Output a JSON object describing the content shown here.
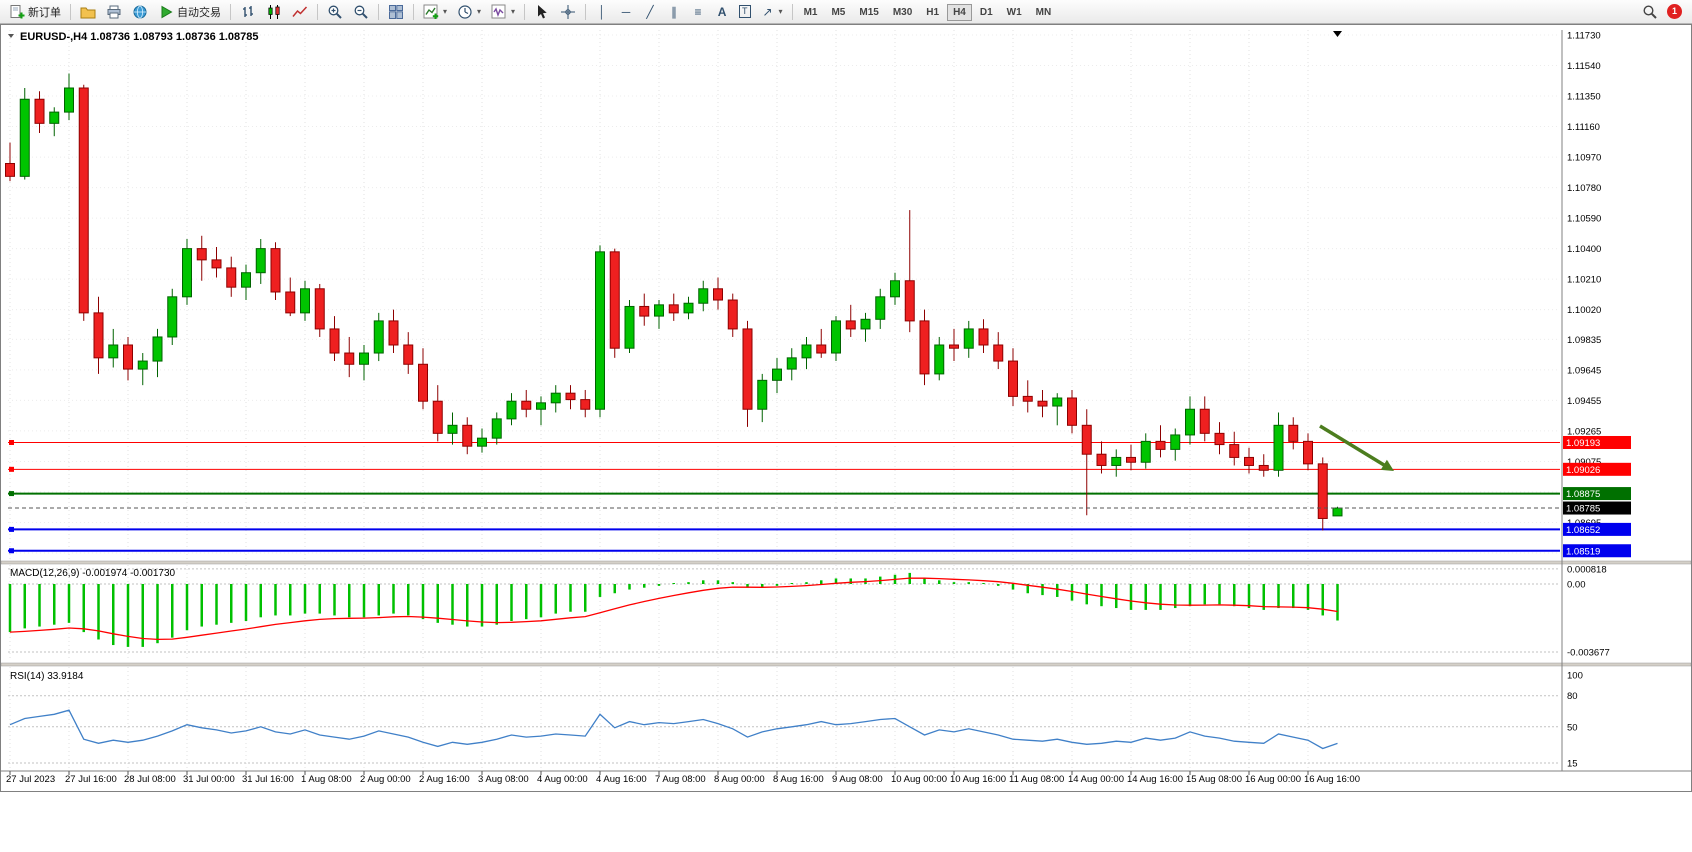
{
  "toolbar": {
    "new_order_label": "新订单",
    "auto_trading_label": "自动交易",
    "timeframes": [
      "M1",
      "M5",
      "M15",
      "M30",
      "H1",
      "H4",
      "D1",
      "W1",
      "MN"
    ],
    "active_timeframe": "H4",
    "notification_count": "1"
  },
  "chart": {
    "symbol_period": "EURUSD-,H4",
    "ohlc": "1.08736 1.08793 1.08736 1.08785",
    "price_axis": [
      "1.11730",
      "1.11540",
      "1.11350",
      "1.11160",
      "1.10970",
      "1.10780",
      "1.10590",
      "1.10400",
      "1.10210",
      "1.10020",
      "1.09835",
      "1.09645",
      "1.09455",
      "1.09265",
      "1.09075",
      "1.08885",
      "1.08695",
      "1.08505"
    ],
    "time_axis": [
      "27 Jul 2023",
      "27 Jul 16:00",
      "28 Jul 08:00",
      "31 Jul 00:00",
      "31 Jul 16:00",
      "1 Aug 08:00",
      "2 Aug 00:00",
      "2 Aug 16:00",
      "3 Aug 08:00",
      "4 Aug 00:00",
      "4 Aug 16:00",
      "7 Aug 08:00",
      "8 Aug 00:00",
      "8 Aug 16:00",
      "9 Aug 08:00",
      "10 Aug 00:00",
      "10 Aug 16:00",
      "11 Aug 08:00",
      "14 Aug 00:00",
      "14 Aug 16:00",
      "15 Aug 08:00",
      "16 Aug 00:00",
      "16 Aug 16:00"
    ],
    "hlines": [
      {
        "price": 1.09193,
        "label": "1.09193",
        "color": "#ff0000",
        "width": 1
      },
      {
        "price": 1.09026,
        "label": "1.09026",
        "color": "#ff0000",
        "width": 1
      },
      {
        "price": 1.08875,
        "label": "1.08875",
        "color": "#007000",
        "width": 2
      },
      {
        "price": 1.08652,
        "label": "1.08652",
        "color": "#0000ee",
        "width": 2
      },
      {
        "price": 1.08519,
        "label": "1.08519",
        "color": "#0000ee",
        "width": 2
      }
    ],
    "current_price": {
      "value": 1.08785,
      "label": "1.08785",
      "tag_color": "#000000"
    },
    "colors": {
      "up": "#00c400",
      "up_border": "#006300",
      "down": "#ee2020",
      "down_border": "#8e0000",
      "macd_bar": "#00c000",
      "macd_signal": "#ff0000",
      "rsi_line": "#4080c8",
      "arrow": "#4c7d1e"
    }
  },
  "chart_data": {
    "type": "candlestick",
    "symbol": "EURUSD-",
    "timeframe": "H4",
    "candles": [
      [
        1.1093,
        1.1106,
        1.1082,
        1.1085
      ],
      [
        1.1085,
        1.114,
        1.1083,
        1.1133
      ],
      [
        1.1133,
        1.1138,
        1.1112,
        1.1118
      ],
      [
        1.1118,
        1.1128,
        1.111,
        1.1125
      ],
      [
        1.1125,
        1.1149,
        1.112,
        1.114
      ],
      [
        1.114,
        1.1142,
        1.0995,
        1.1
      ],
      [
        1.1,
        1.101,
        1.0962,
        1.0972
      ],
      [
        1.0972,
        1.099,
        1.0966,
        1.098
      ],
      [
        1.098,
        1.0985,
        1.0958,
        1.0965
      ],
      [
        1.0965,
        1.0975,
        1.0955,
        1.097
      ],
      [
        1.097,
        1.099,
        1.096,
        1.0985
      ],
      [
        1.0985,
        1.1015,
        1.098,
        1.101
      ],
      [
        1.101,
        1.1046,
        1.1005,
        1.104
      ],
      [
        1.104,
        1.1048,
        1.102,
        1.1033
      ],
      [
        1.1033,
        1.1041,
        1.1022,
        1.1028
      ],
      [
        1.1028,
        1.1035,
        1.101,
        1.1016
      ],
      [
        1.1016,
        1.103,
        1.1008,
        1.1025
      ],
      [
        1.1025,
        1.1046,
        1.1018,
        1.104
      ],
      [
        1.104,
        1.1044,
        1.1008,
        1.1013
      ],
      [
        1.1013,
        1.1022,
        1.0998,
        1.1
      ],
      [
        1.1,
        1.102,
        1.0995,
        1.1015
      ],
      [
        1.1015,
        1.1018,
        1.0985,
        1.099
      ],
      [
        1.099,
        1.0998,
        1.097,
        1.0975
      ],
      [
        1.0975,
        1.0985,
        1.096,
        1.0968
      ],
      [
        1.0968,
        1.098,
        1.0958,
        1.0975
      ],
      [
        1.0975,
        1.1,
        1.097,
        1.0995
      ],
      [
        1.0995,
        1.1002,
        1.0975,
        1.098
      ],
      [
        1.098,
        1.0988,
        1.0962,
        1.0968
      ],
      [
        1.0968,
        1.0978,
        1.094,
        1.0945
      ],
      [
        1.0945,
        1.0955,
        1.092,
        1.0925
      ],
      [
        1.0925,
        1.0938,
        1.0918,
        1.093
      ],
      [
        1.093,
        1.0935,
        1.0912,
        1.0917
      ],
      [
        1.0917,
        1.0928,
        1.0913,
        1.0922
      ],
      [
        1.0922,
        1.0938,
        1.0918,
        1.0934
      ],
      [
        1.0934,
        1.095,
        1.093,
        1.0945
      ],
      [
        1.0945,
        1.0952,
        1.0935,
        1.094
      ],
      [
        1.094,
        1.0948,
        1.093,
        1.0944
      ],
      [
        1.0944,
        1.0955,
        1.0938,
        1.095
      ],
      [
        1.095,
        1.0955,
        1.094,
        1.0946
      ],
      [
        1.0946,
        1.0952,
        1.0935,
        1.094
      ],
      [
        1.094,
        1.1042,
        1.0935,
        1.1038
      ],
      [
        1.1038,
        1.104,
        1.0972,
        1.0978
      ],
      [
        1.0978,
        1.1008,
        1.0975,
        1.1004
      ],
      [
        1.1004,
        1.1012,
        1.0992,
        1.0998
      ],
      [
        1.0998,
        1.1008,
        1.099,
        1.1005
      ],
      [
        1.1005,
        1.1012,
        1.0995,
        1.1
      ],
      [
        1.1,
        1.101,
        1.0996,
        1.1006
      ],
      [
        1.1006,
        1.102,
        1.1001,
        1.1015
      ],
      [
        1.1015,
        1.1022,
        1.1002,
        1.1008
      ],
      [
        1.1008,
        1.1012,
        1.0985,
        1.099
      ],
      [
        1.099,
        1.0995,
        1.0929,
        1.094
      ],
      [
        1.094,
        1.0962,
        1.0932,
        1.0958
      ],
      [
        1.0958,
        1.0972,
        1.095,
        1.0965
      ],
      [
        1.0965,
        1.0978,
        1.0958,
        1.0972
      ],
      [
        1.0972,
        1.0985,
        1.0965,
        1.098
      ],
      [
        1.098,
        1.099,
        1.0972,
        1.0975
      ],
      [
        1.0975,
        1.0998,
        1.097,
        1.0995
      ],
      [
        1.0995,
        1.1005,
        1.0985,
        1.099
      ],
      [
        1.099,
        1.1,
        1.0982,
        1.0996
      ],
      [
        1.0996,
        1.1015,
        1.099,
        1.101
      ],
      [
        1.101,
        1.1025,
        1.1005,
        1.102
      ],
      [
        1.102,
        1.1064,
        1.0988,
        1.0995
      ],
      [
        1.0995,
        1.1002,
        1.0955,
        1.0962
      ],
      [
        1.0962,
        1.0985,
        1.0958,
        1.098
      ],
      [
        1.098,
        1.099,
        1.097,
        1.0978
      ],
      [
        1.0978,
        1.0995,
        1.0972,
        1.099
      ],
      [
        1.099,
        1.0996,
        1.0975,
        1.098
      ],
      [
        1.098,
        1.0988,
        1.0965,
        1.097
      ],
      [
        1.097,
        1.0978,
        1.0942,
        1.0948
      ],
      [
        1.0948,
        1.0958,
        1.0938,
        1.0945
      ],
      [
        1.0945,
        1.0952,
        1.0935,
        1.0942
      ],
      [
        1.0942,
        1.095,
        1.093,
        1.0947
      ],
      [
        1.0947,
        1.0952,
        1.0925,
        1.093
      ],
      [
        1.093,
        1.094,
        1.0874,
        1.0912
      ],
      [
        1.0912,
        1.092,
        1.09,
        1.0905
      ],
      [
        1.0905,
        1.0915,
        1.0898,
        1.091
      ],
      [
        1.091,
        1.0918,
        1.0902,
        1.0907
      ],
      [
        1.0907,
        1.0925,
        1.0903,
        1.092
      ],
      [
        1.092,
        1.093,
        1.091,
        1.0915
      ],
      [
        1.0915,
        1.0928,
        1.0908,
        1.0924
      ],
      [
        1.0924,
        1.0948,
        1.0918,
        1.094
      ],
      [
        1.094,
        1.0948,
        1.092,
        1.0925
      ],
      [
        1.0925,
        1.0932,
        1.0912,
        1.0918
      ],
      [
        1.0918,
        1.0926,
        1.0905,
        1.091
      ],
      [
        1.091,
        1.0916,
        1.09,
        1.0905
      ],
      [
        1.0905,
        1.0912,
        1.0898,
        1.0902
      ],
      [
        1.0902,
        1.0938,
        1.0898,
        1.093
      ],
      [
        1.093,
        1.0935,
        1.0915,
        1.092
      ],
      [
        1.092,
        1.0925,
        1.0902,
        1.0906
      ],
      [
        1.0906,
        1.091,
        1.08645,
        1.0872
      ],
      [
        1.08736,
        1.08793,
        1.08736,
        1.08785
      ]
    ],
    "indicators": {
      "macd": {
        "label": "MACD(12,26,9)",
        "value": "-0.001974",
        "signal_value": "-0.001730",
        "scale": [
          "0.000818",
          "0.00",
          "-0.003677"
        ],
        "histogram": [
          -0.0026,
          -0.0024,
          -0.0023,
          -0.0022,
          -0.0021,
          -0.0026,
          -0.003,
          -0.0033,
          -0.0034,
          -0.0034,
          -0.0032,
          -0.0029,
          -0.0025,
          -0.0023,
          -0.0022,
          -0.0021,
          -0.002,
          -0.0018,
          -0.0017,
          -0.0017,
          -0.0016,
          -0.0016,
          -0.0017,
          -0.0018,
          -0.0018,
          -0.0017,
          -0.0016,
          -0.0017,
          -0.0019,
          -0.0021,
          -0.0022,
          -0.0023,
          -0.0023,
          -0.0022,
          -0.002,
          -0.0019,
          -0.0018,
          -0.0016,
          -0.0015,
          -0.0015,
          -0.0007,
          -0.0005,
          -0.0003,
          -0.0002,
          -0.0001,
          0.0,
          0.0001,
          0.0002,
          0.0002,
          0.0001,
          -0.0002,
          -0.0002,
          -0.0001,
          0.0,
          0.0001,
          0.0002,
          0.0003,
          0.0003,
          0.0003,
          0.0004,
          0.0005,
          0.0006,
          0.0003,
          0.0002,
          0.0001,
          0.0001,
          0.0,
          -0.0001,
          -0.0003,
          -0.0005,
          -0.0006,
          -0.0007,
          -0.0009,
          -0.0011,
          -0.0012,
          -0.0013,
          -0.0014,
          -0.0014,
          -0.0014,
          -0.0013,
          -0.0012,
          -0.0011,
          -0.0011,
          -0.0012,
          -0.0013,
          -0.0014,
          -0.0013,
          -0.0013,
          -0.0014,
          -0.0017,
          -0.001974
        ]
      },
      "rsi": {
        "label": "RSI(14)",
        "value": "33.9184",
        "scale": [
          "100",
          "80",
          "50",
          "15"
        ],
        "levels": [
          80,
          50,
          15
        ],
        "values": [
          52,
          58,
          60,
          62,
          66,
          38,
          34,
          37,
          35,
          37,
          41,
          46,
          52,
          49,
          47,
          44,
          46,
          50,
          45,
          43,
          47,
          42,
          40,
          38,
          41,
          46,
          43,
          40,
          35,
          31,
          35,
          33,
          35,
          38,
          42,
          40,
          41,
          43,
          42,
          41,
          62,
          49,
          55,
          52,
          54,
          53,
          55,
          57,
          53,
          48,
          40,
          45,
          48,
          50,
          52,
          55,
          52,
          53,
          55,
          57,
          58,
          50,
          42,
          47,
          45,
          48,
          45,
          42,
          38,
          37,
          36,
          38,
          35,
          33,
          34,
          36,
          35,
          39,
          37,
          39,
          45,
          41,
          39,
          36,
          35,
          34,
          43,
          40,
          37,
          29,
          33.9
        ]
      }
    }
  }
}
